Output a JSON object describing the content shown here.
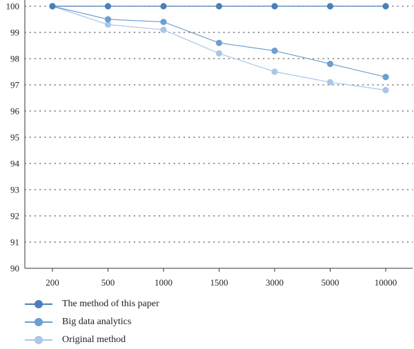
{
  "chart_data": {
    "type": "line",
    "categories": [
      "200",
      "500",
      "1000",
      "1500",
      "3000",
      "5000",
      "10000"
    ],
    "ylim": [
      90,
      100
    ],
    "yticks": [
      "90",
      "91",
      "92",
      "93",
      "94",
      "95",
      "96",
      "97",
      "98",
      "99",
      "100"
    ],
    "grid": "horizontal dotted",
    "legend_position": "bottom-left",
    "series": [
      {
        "name": "The method of this paper",
        "color": "#4a7fb8",
        "values": [
          100,
          100,
          100,
          100,
          100,
          100,
          100
        ]
      },
      {
        "name": "Big data analytics",
        "color": "#6a9fd0",
        "values": [
          100,
          99.5,
          99.4,
          98.6,
          98.3,
          97.8,
          97.3
        ]
      },
      {
        "name": "Original method",
        "color": "#a9c7e6",
        "values": [
          100,
          99.3,
          99.1,
          98.2,
          97.5,
          97.1,
          96.8
        ]
      }
    ]
  }
}
